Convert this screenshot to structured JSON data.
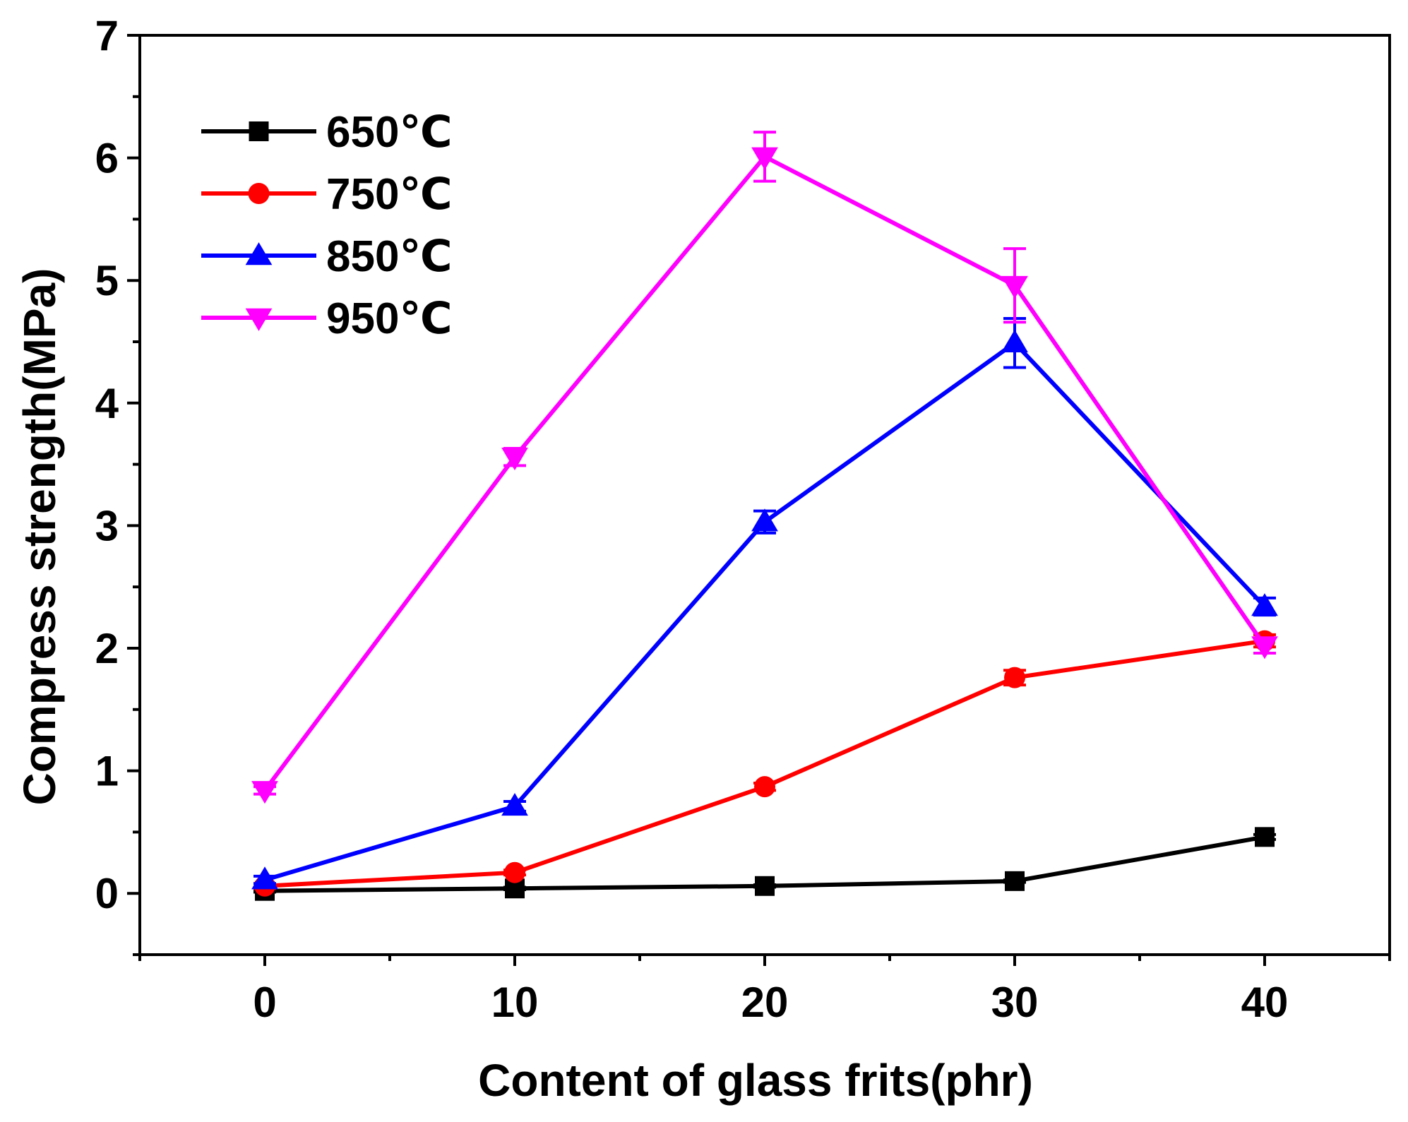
{
  "chart_data": {
    "type": "line",
    "title": "",
    "xlabel": "Content of glass frits(phr)",
    "ylabel": "Compress strength(MPa)",
    "x": [
      0,
      10,
      20,
      30,
      40
    ],
    "xlim": [
      -5,
      45
    ],
    "ylim": [
      -0.5,
      7
    ],
    "xticks": [
      0,
      10,
      20,
      30,
      40
    ],
    "xtick_labels": [
      "0",
      "10",
      "20",
      "30",
      "40"
    ],
    "yticks": [
      0,
      1,
      2,
      3,
      4,
      5,
      6,
      7
    ],
    "ytick_labels": [
      "0",
      "1",
      "2",
      "3",
      "4",
      "5",
      "6",
      "7"
    ],
    "grid": false,
    "legend_position": "top-left",
    "series": [
      {
        "name": "650℃",
        "color": "#000000",
        "marker": "square",
        "values": [
          0.02,
          0.04,
          0.06,
          0.1,
          0.46
        ],
        "errors": [
          0.01,
          0.01,
          0.01,
          0.01,
          0.02
        ]
      },
      {
        "name": "750℃",
        "color": "#ff0000",
        "marker": "circle",
        "values": [
          0.06,
          0.17,
          0.87,
          1.76,
          2.06
        ],
        "errors": [
          0.02,
          0.02,
          0.03,
          0.06,
          0.05
        ]
      },
      {
        "name": "850℃",
        "color": "#0000ff",
        "marker": "triangle-up",
        "values": [
          0.11,
          0.71,
          3.03,
          4.49,
          2.34
        ],
        "errors": [
          0.03,
          0.04,
          0.09,
          0.2,
          0.07
        ]
      },
      {
        "name": "950℃",
        "color": "#ff00ff",
        "marker": "triangle-down",
        "values": [
          0.84,
          3.56,
          6.01,
          4.96,
          2.02
        ],
        "errors": [
          0.03,
          0.07,
          0.2,
          0.3,
          0.06
        ]
      }
    ]
  }
}
